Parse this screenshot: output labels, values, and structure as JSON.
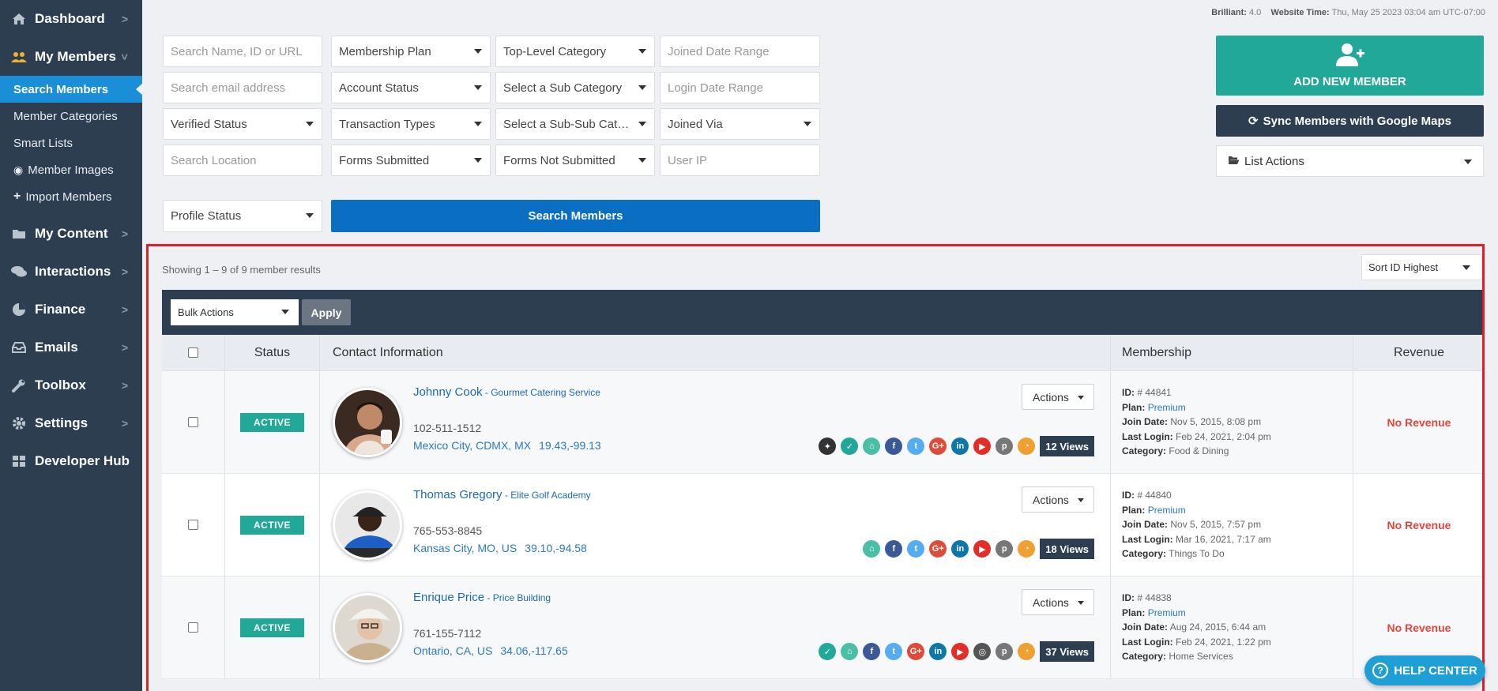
{
  "sidebar": {
    "items": [
      {
        "label": "Dashboard",
        "icon": "home-icon"
      },
      {
        "label": "My Members",
        "icon": "users-icon",
        "open": true
      },
      {
        "label": "My Content",
        "icon": "folder-icon"
      },
      {
        "label": "Interactions",
        "icon": "comments-icon"
      },
      {
        "label": "Finance",
        "icon": "pie-chart-icon"
      },
      {
        "label": "Emails",
        "icon": "inbox-icon"
      },
      {
        "label": "Toolbox",
        "icon": "wrench-icon"
      },
      {
        "label": "Settings",
        "icon": "gear-icon"
      },
      {
        "label": "Developer Hub",
        "icon": "grid-icon"
      }
    ],
    "sub_items": [
      {
        "label": "Search Members",
        "active": true
      },
      {
        "label": "Member Categories"
      },
      {
        "label": "Smart Lists"
      },
      {
        "label": "Member Images",
        "icon": "user-circle-icon"
      },
      {
        "label": "Import Members",
        "icon": "plus-icon"
      }
    ]
  },
  "top_info": {
    "brilliant_label": "Brilliant:",
    "brilliant_value": "4.0",
    "time_label": "Website Time:",
    "time_value": "Thu, May 25 2023 03:04 am UTC-07:00"
  },
  "filters": {
    "search_name": "Search Name, ID or URL",
    "membership_plan": "Membership Plan",
    "top_category": "Top-Level Category",
    "joined_date": "Joined Date Range",
    "search_email": "Search email address",
    "account_status": "Account Status",
    "sub_category": "Select a Sub Category",
    "login_date": "Login Date Range",
    "verified_status": "Verified Status",
    "transaction_types": "Transaction Types",
    "sub_sub_category": "Select a Sub-Sub Category",
    "joined_via": "Joined Via",
    "search_location": "Search Location",
    "forms_submitted": "Forms Submitted",
    "forms_not_submitted": "Forms Not Submitted",
    "user_ip": "User IP",
    "profile_status": "Profile Status",
    "search_button": "Search Members"
  },
  "actions_panel": {
    "add_member": "ADD NEW MEMBER",
    "sync": "Sync Members with Google Maps",
    "list_actions": "List Actions"
  },
  "results": {
    "showing": "Showing 1 – 9 of 9 member results",
    "sort": "Sort ID Highest",
    "bulk_actions": "Bulk Actions",
    "apply": "Apply",
    "headers": {
      "status": "Status",
      "contact": "Contact Information",
      "membership": "Membership",
      "revenue": "Revenue"
    },
    "labels": {
      "id": "ID:",
      "plan": "Plan:",
      "join": "Join Date:",
      "login": "Last Login:",
      "category": "Category:",
      "actions": "Actions"
    },
    "rows": [
      {
        "status": "ACTIVE",
        "name": "Johnny Cook",
        "business": " - Gourmet Catering Service",
        "phone": "102-511-1512",
        "location": "Mexico City, CDMX, MX",
        "coords": "19.43,-99.13",
        "views": "12 Views",
        "id": "# 44841",
        "plan": "Premium",
        "join_date": "Nov 5, 2015, 8:08 pm",
        "last_login": "Feb 24, 2021, 2:04 pm",
        "category": "Food & Dining",
        "revenue": "No Revenue",
        "icons": [
          "pin-icon",
          "check-icon",
          "home-icon",
          "facebook-icon",
          "twitter-icon",
          "google-plus-icon",
          "linkedin-icon",
          "youtube-icon",
          "pinterest-icon",
          "rss-icon"
        ]
      },
      {
        "status": "ACTIVE",
        "name": "Thomas Gregory",
        "business": " - Elite Golf Academy",
        "phone": "765-553-8845",
        "location": "Kansas City, MO, US",
        "coords": "39.10,-94.58",
        "views": "18 Views",
        "id": "# 44840",
        "plan": "Premium",
        "join_date": "Nov 5, 2015, 7:57 pm",
        "last_login": "Mar 16, 2021, 7:17 am",
        "category": "Things To Do",
        "revenue": "No Revenue",
        "icons": [
          "home-icon",
          "facebook-icon",
          "twitter-icon",
          "google-plus-icon",
          "linkedin-icon",
          "youtube-icon",
          "pinterest-icon",
          "rss-icon"
        ]
      },
      {
        "status": "ACTIVE",
        "name": "Enrique Price",
        "business": " - Price Building",
        "phone": "761-155-7112",
        "location": "Ontario, CA, US",
        "coords": "34.06,-117.65",
        "views": "37 Views",
        "id": "# 44838",
        "plan": "Premium",
        "join_date": "Aug 24, 2015, 6:44 am",
        "last_login": "Feb 24, 2021, 1:22 pm",
        "category": "Home Services",
        "revenue": "No Revenue",
        "icons": [
          "check-icon",
          "home-icon",
          "facebook-icon",
          "twitter-icon",
          "google-plus-icon",
          "linkedin-icon",
          "youtube-icon",
          "instagram-icon",
          "pinterest-icon",
          "rss-icon"
        ]
      }
    ]
  },
  "help_center": "HELP CENTER",
  "colors": {
    "sidebar": "#2c3e50",
    "accent_blue": "#0a6fc2",
    "teal": "#22a898",
    "highlight_border": "#e31e24"
  }
}
